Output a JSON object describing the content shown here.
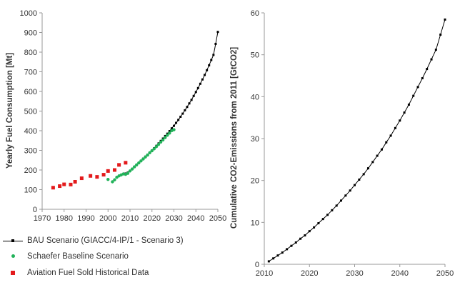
{
  "chart_data": [
    {
      "type": "scatter",
      "title": "",
      "xlabel": "",
      "ylabel": "Yearly Fuel Consumption [Mt]",
      "xlim": [
        1970,
        2050
      ],
      "ylim": [
        0,
        1000
      ],
      "xticks": [
        1970,
        1980,
        1990,
        2000,
        2010,
        2020,
        2030,
        2040,
        2050
      ],
      "yticks": [
        0,
        100,
        200,
        300,
        400,
        500,
        600,
        700,
        800,
        900,
        1000
      ],
      "grid": false,
      "legend_position": "bottom",
      "series": [
        {
          "name": "BAU Scenario  (GIACC/4-IP/1 - Scenario 3)",
          "color": "#000000",
          "marker": "line-with-square-markers",
          "x": [
            2008,
            2009,
            2010,
            2011,
            2012,
            2013,
            2014,
            2015,
            2016,
            2017,
            2018,
            2019,
            2020,
            2021,
            2022,
            2023,
            2024,
            2025,
            2026,
            2027,
            2028,
            2029,
            2030,
            2031,
            2032,
            2033,
            2034,
            2035,
            2036,
            2037,
            2038,
            2039,
            2040,
            2041,
            2042,
            2043,
            2044,
            2045,
            2046,
            2047,
            2048,
            2049,
            2050
          ],
          "y": [
            182,
            187,
            195,
            205,
            215,
            225,
            236,
            247,
            258,
            268,
            278,
            289,
            300,
            311,
            323,
            335,
            348,
            360,
            373,
            385,
            398,
            412,
            425,
            440,
            455,
            471,
            487,
            504,
            521,
            539,
            557,
            577,
            597,
            617,
            639,
            661,
            684,
            708,
            733,
            760,
            786,
            842,
            903
          ]
        },
        {
          "name": "Schaefer Baseline Scenario",
          "color": "#22b25a",
          "marker": "dot",
          "x": [
            2000,
            2002,
            2003,
            2004,
            2005,
            2006,
            2007,
            2008,
            2009,
            2010,
            2011,
            2012,
            2013,
            2014,
            2015,
            2016,
            2017,
            2018,
            2019,
            2020,
            2021,
            2022,
            2023,
            2024,
            2025,
            2026,
            2027,
            2028,
            2029,
            2030
          ],
          "y": [
            152,
            140,
            150,
            163,
            170,
            175,
            180,
            178,
            183,
            195,
            205,
            216,
            226,
            236,
            246,
            256,
            266,
            276,
            288,
            298,
            308,
            319,
            330,
            342,
            353,
            365,
            377,
            388,
            400,
            405
          ]
        },
        {
          "name": "Aviation Fuel Sold Historical Data",
          "color": "#e31a1c",
          "marker": "square",
          "x": [
            1975,
            1978,
            1980,
            1983,
            1985,
            1988,
            1992,
            1995,
            1998,
            2000,
            2003,
            2005,
            2008
          ],
          "y": [
            110,
            118,
            127,
            126,
            140,
            158,
            170,
            165,
            176,
            195,
            200,
            226,
            237
          ]
        }
      ]
    },
    {
      "type": "line",
      "title": "",
      "xlabel": "",
      "ylabel": "Cumulative CO2-Emissions from 2011 [GtCO2]",
      "xlim": [
        2010,
        2050
      ],
      "ylim": [
        0,
        60
      ],
      "xticks": [
        2010,
        2020,
        2030,
        2040,
        2050
      ],
      "yticks": [
        0,
        10,
        20,
        30,
        40,
        50,
        60
      ],
      "grid": false,
      "series": [
        {
          "color": "#000000",
          "marker": "line-with-square-markers",
          "x": [
            2011,
            2012,
            2013,
            2014,
            2015,
            2016,
            2017,
            2018,
            2019,
            2020,
            2021,
            2022,
            2023,
            2024,
            2025,
            2026,
            2027,
            2028,
            2029,
            2030,
            2031,
            2032,
            2033,
            2034,
            2035,
            2036,
            2037,
            2038,
            2039,
            2040,
            2041,
            2042,
            2043,
            2044,
            2045,
            2046,
            2047,
            2048,
            2049,
            2050
          ],
          "y": [
            0.7,
            1.4,
            2.1,
            2.8,
            3.6,
            4.4,
            5.2,
            6.1,
            6.9,
            7.9,
            8.8,
            9.8,
            10.8,
            11.8,
            12.9,
            14.0,
            15.2,
            16.4,
            17.6,
            18.9,
            20.2,
            21.5,
            22.9,
            24.4,
            25.9,
            27.4,
            29.1,
            30.7,
            32.5,
            34.3,
            36.2,
            38.1,
            40.2,
            42.3,
            44.4,
            46.6,
            48.9,
            51.2,
            54.8,
            58.4
          ]
        }
      ]
    }
  ]
}
